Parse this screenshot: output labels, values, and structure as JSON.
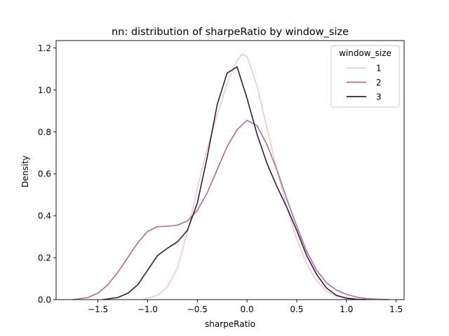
{
  "chart_data": {
    "type": "line",
    "title": "nn: distribution of sharpeRatio by window_size",
    "xlabel": "sharpeRatio",
    "ylabel": "Density",
    "xlim": [
      -1.92,
      1.58
    ],
    "ylim": [
      0,
      1.235
    ],
    "xticks": [
      -1.5,
      -1.0,
      -0.5,
      0.0,
      0.5,
      1.0,
      1.5
    ],
    "xtick_labels": [
      "−1.5",
      "−1.0",
      "−0.5",
      "0.0",
      "0.5",
      "1.0",
      "1.5"
    ],
    "yticks": [
      0.0,
      0.2,
      0.4,
      0.6,
      0.8,
      1.0,
      1.2
    ],
    "ytick_labels": [
      "0.0",
      "0.2",
      "0.4",
      "0.6",
      "0.8",
      "1.0",
      "1.2"
    ],
    "grid": false,
    "legend": {
      "title": "window_size",
      "placement": "top-right"
    },
    "series": [
      {
        "name": "1",
        "color": "#ebcdc8",
        "x": [
          -1.05,
          -0.9,
          -0.8,
          -0.7,
          -0.6,
          -0.5,
          -0.4,
          -0.3,
          -0.2,
          -0.1,
          -0.05,
          0.0,
          0.1,
          0.2,
          0.3,
          0.4,
          0.5,
          0.6,
          0.7,
          0.8,
          0.9,
          1.0,
          1.1
        ],
        "y": [
          0.0,
          0.02,
          0.06,
          0.15,
          0.32,
          0.53,
          0.72,
          0.88,
          1.03,
          1.14,
          1.17,
          1.16,
          1.02,
          0.82,
          0.62,
          0.44,
          0.29,
          0.17,
          0.09,
          0.04,
          0.015,
          0.004,
          0.0
        ]
      },
      {
        "name": "2",
        "color": "#ae6b95",
        "x": [
          -1.75,
          -1.6,
          -1.5,
          -1.4,
          -1.3,
          -1.2,
          -1.1,
          -1.0,
          -0.9,
          -0.8,
          -0.7,
          -0.6,
          -0.5,
          -0.4,
          -0.3,
          -0.2,
          -0.1,
          0.0,
          0.1,
          0.2,
          0.3,
          0.4,
          0.5,
          0.6,
          0.7,
          0.8,
          0.9,
          1.0,
          1.1,
          1.2,
          1.3,
          1.43
        ],
        "y": [
          0.0,
          0.01,
          0.03,
          0.07,
          0.13,
          0.2,
          0.27,
          0.325,
          0.348,
          0.35,
          0.355,
          0.375,
          0.425,
          0.51,
          0.62,
          0.73,
          0.81,
          0.855,
          0.83,
          0.74,
          0.62,
          0.48,
          0.35,
          0.23,
          0.14,
          0.08,
          0.045,
          0.025,
          0.012,
          0.005,
          0.002,
          0.0
        ]
      },
      {
        "name": "3",
        "color": "#2d1e3e",
        "x": [
          -1.45,
          -1.3,
          -1.2,
          -1.1,
          -1.0,
          -0.9,
          -0.8,
          -0.7,
          -0.6,
          -0.5,
          -0.4,
          -0.3,
          -0.2,
          -0.1,
          0.0,
          0.1,
          0.2,
          0.3,
          0.4,
          0.5,
          0.6,
          0.7,
          0.8,
          0.9,
          1.0,
          1.1,
          1.2
        ],
        "y": [
          0.0,
          0.01,
          0.03,
          0.07,
          0.14,
          0.21,
          0.245,
          0.275,
          0.33,
          0.46,
          0.68,
          0.93,
          1.08,
          1.11,
          0.96,
          0.79,
          0.65,
          0.54,
          0.44,
          0.33,
          0.21,
          0.12,
          0.055,
          0.02,
          0.007,
          0.002,
          0.0
        ]
      }
    ]
  }
}
